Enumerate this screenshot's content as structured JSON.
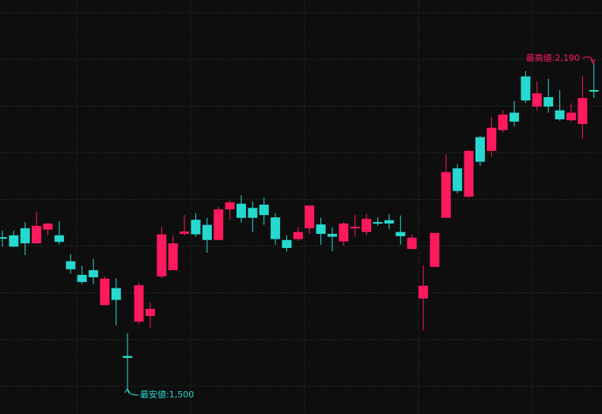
{
  "chart_data": {
    "type": "candlestick",
    "ylim": [
      1446,
      2324
    ],
    "up_color": "#ff1a5e",
    "down_color": "#26d9d0",
    "grid": true,
    "open": [
      1821,
      1825,
      1840,
      1808,
      1837,
      1825,
      1770,
      1741,
      1751,
      1677,
      1713,
      1569,
      1642,
      1654,
      1738,
      1751,
      1828,
      1858,
      1847,
      1815,
      1880,
      1892,
      1883,
      1890,
      1863,
      1815,
      1817,
      1840,
      1848,
      1828,
      1812,
      1840,
      1832,
      1853,
      1857,
      1832,
      1796,
      1691,
      1758,
      1862,
      1967,
      1907,
      2033,
      2004,
      2048,
      2085,
      2162,
      2098,
      2118,
      2090,
      2069,
      2061,
      2133
    ],
    "high": [
      1835,
      1835,
      1853,
      1875,
      1850,
      1855,
      1785,
      1760,
      1775,
      1738,
      1734,
      1617,
      1724,
      1683,
      1843,
      1825,
      1868,
      1872,
      1862,
      1885,
      1899,
      1910,
      1897,
      1905,
      1872,
      1825,
      1842,
      1888,
      1862,
      1842,
      1853,
      1868,
      1870,
      1863,
      1870,
      1867,
      1827,
      1761,
      1830,
      1997,
      1976,
      2006,
      2036,
      2076,
      2090,
      2110,
      2173,
      2151,
      2157,
      2133,
      2105,
      2162,
      2190
    ],
    "low": [
      1801,
      1800,
      1783,
      1808,
      1825,
      1805,
      1744,
      1721,
      1721,
      1677,
      1634,
      1500,
      1637,
      1629,
      1734,
      1751,
      1825,
      1822,
      1788,
      1815,
      1858,
      1852,
      1832,
      1847,
      1805,
      1791,
      1813,
      1828,
      1805,
      1791,
      1803,
      1822,
      1825,
      1845,
      1838,
      1805,
      1796,
      1624,
      1758,
      1862,
      1914,
      1905,
      1972,
      1992,
      2043,
      2056,
      2106,
      2090,
      2085,
      2068,
      2066,
      2029,
      2116
    ],
    "close": [
      1818,
      1801,
      1808,
      1845,
      1850,
      1811,
      1753,
      1726,
      1736,
      1733,
      1688,
      1565,
      1719,
      1669,
      1827,
      1808,
      1833,
      1827,
      1815,
      1880,
      1895,
      1862,
      1862,
      1868,
      1817,
      1798,
      1832,
      1888,
      1828,
      1822,
      1850,
      1843,
      1860,
      1850,
      1850,
      1823,
      1820,
      1718,
      1830,
      1959,
      1919,
      2004,
      1981,
      2053,
      2081,
      2066,
      2111,
      2126,
      2098,
      2071,
      2085,
      2116,
      2130
    ],
    "annotations": {
      "high": "最高値:2,190",
      "low": "最安値:1,500"
    }
  }
}
